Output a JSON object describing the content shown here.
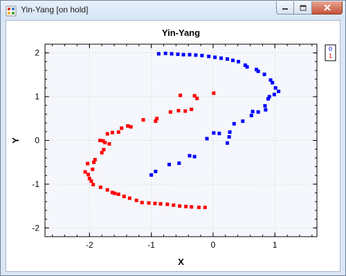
{
  "window": {
    "title": "Yin-Yang [on hold]"
  },
  "chart_data": {
    "type": "scatter",
    "title": "Yin-Yang",
    "xlabel": "X",
    "ylabel": "Y",
    "xlim": [
      -2.72,
      1.68
    ],
    "ylim": [
      -2.2,
      2.2
    ],
    "x_ticks": [
      -2,
      -1,
      0,
      1
    ],
    "y_ticks": [
      -2,
      -1,
      0,
      1,
      2
    ],
    "grid": true,
    "legend_position": "top-right",
    "background": "#f5f7fc",
    "series": [
      {
        "name": "0",
        "color": "#0000ff",
        "points": [
          [
            -0.88,
            1.98
          ],
          [
            -0.77,
            1.99
          ],
          [
            -0.67,
            1.98
          ],
          [
            -0.57,
            1.97
          ],
          [
            -0.48,
            1.96
          ],
          [
            -0.38,
            1.96
          ],
          [
            -0.28,
            1.95
          ],
          [
            -0.18,
            1.94
          ],
          [
            -0.07,
            1.92
          ],
          [
            0.03,
            1.9
          ],
          [
            0.13,
            1.88
          ],
          [
            0.23,
            1.86
          ],
          [
            0.32,
            1.83
          ],
          [
            0.41,
            1.8
          ],
          [
            0.52,
            1.72
          ],
          [
            0.55,
            1.68
          ],
          [
            0.7,
            1.62
          ],
          [
            0.73,
            1.58
          ],
          [
            0.83,
            1.51
          ],
          [
            0.93,
            1.38
          ],
          [
            0.96,
            1.32
          ],
          [
            1.01,
            1.2
          ],
          [
            1.06,
            1.12
          ],
          [
            0.99,
            1.05
          ],
          [
            0.91,
            1.0
          ],
          [
            0.89,
            0.95
          ],
          [
            0.84,
            0.79
          ],
          [
            0.85,
            0.7
          ],
          [
            0.73,
            0.65
          ],
          [
            0.64,
            0.66
          ],
          [
            0.62,
            0.57
          ],
          [
            0.48,
            0.44
          ],
          [
            0.34,
            0.38
          ],
          [
            0.27,
            0.19
          ],
          [
            0.26,
            0.08
          ],
          [
            0.1,
            0.16
          ],
          [
            0.01,
            0.17
          ],
          [
            -0.1,
            0.04
          ],
          [
            0.23,
            -0.06
          ],
          [
            -0.3,
            -0.37
          ],
          [
            -0.38,
            -0.35
          ],
          [
            -0.55,
            -0.52
          ],
          [
            -0.71,
            -0.55
          ],
          [
            -0.93,
            -0.71
          ],
          [
            -1.0,
            -0.79
          ]
        ]
      },
      {
        "name": "1",
        "color": "#ff0000",
        "points": [
          [
            -0.13,
            -1.53
          ],
          [
            -0.23,
            -1.53
          ],
          [
            -0.35,
            -1.52
          ],
          [
            -0.44,
            -1.51
          ],
          [
            -0.54,
            -1.5
          ],
          [
            -0.64,
            -1.48
          ],
          [
            -0.74,
            -1.46
          ],
          [
            -0.85,
            -1.45
          ],
          [
            -0.94,
            -1.44
          ],
          [
            -1.04,
            -1.43
          ],
          [
            -1.15,
            -1.42
          ],
          [
            -1.24,
            -1.37
          ],
          [
            -1.35,
            -1.32
          ],
          [
            -1.44,
            -1.28
          ],
          [
            -1.53,
            -1.23
          ],
          [
            -1.59,
            -1.21
          ],
          [
            -1.63,
            -1.19
          ],
          [
            -1.71,
            -1.13
          ],
          [
            -1.82,
            -1.07
          ],
          [
            -1.94,
            -1.01
          ],
          [
            -1.97,
            -0.93
          ],
          [
            -2.0,
            -0.87
          ],
          [
            -2.02,
            -0.78
          ],
          [
            -2.07,
            -0.72
          ],
          [
            -1.95,
            -0.66
          ],
          [
            -2.03,
            -0.53
          ],
          [
            -1.93,
            -0.5
          ],
          [
            -1.91,
            -0.44
          ],
          [
            -1.8,
            -0.28
          ],
          [
            -1.77,
            -0.21
          ],
          [
            -1.68,
            -0.08
          ],
          [
            -1.75,
            -0.05
          ],
          [
            -1.78,
            -0.01
          ],
          [
            -1.83,
            0.0
          ],
          [
            -1.71,
            0.15
          ],
          [
            -1.63,
            0.18
          ],
          [
            -1.53,
            0.19
          ],
          [
            -1.48,
            0.28
          ],
          [
            -1.38,
            0.33
          ],
          [
            -1.33,
            0.31
          ],
          [
            -1.13,
            0.47
          ],
          [
            -0.93,
            0.44
          ],
          [
            -0.91,
            0.5
          ],
          [
            -0.69,
            0.65
          ],
          [
            -0.56,
            0.68
          ],
          [
            -0.45,
            0.67
          ],
          [
            -0.35,
            0.71
          ],
          [
            -0.53,
            1.03
          ],
          [
            -0.3,
            1.02
          ],
          [
            -0.26,
            0.96
          ],
          [
            0.01,
            1.08
          ]
        ]
      }
    ]
  }
}
